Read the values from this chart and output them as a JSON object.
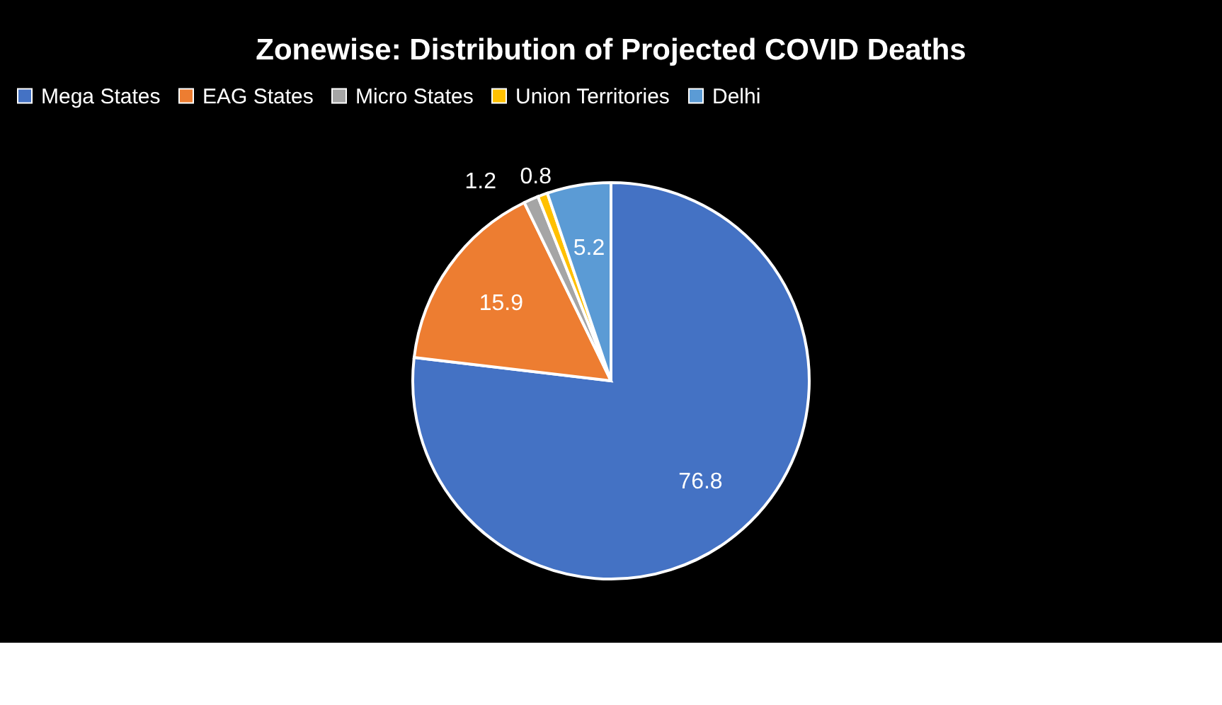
{
  "chart_data": {
    "type": "pie",
    "title": "Zonewise: Distribution of Projected COVID Deaths",
    "categories": [
      "Mega States",
      "EAG States",
      "Micro States",
      "Union Territories",
      "Delhi"
    ],
    "values": [
      76.8,
      15.9,
      1.2,
      0.8,
      5.2
    ],
    "colors": [
      "#4472c4",
      "#ed7d31",
      "#a5a5a5",
      "#ffc000",
      "#5b9bd5"
    ],
    "data_labels": true,
    "legend": "top"
  }
}
